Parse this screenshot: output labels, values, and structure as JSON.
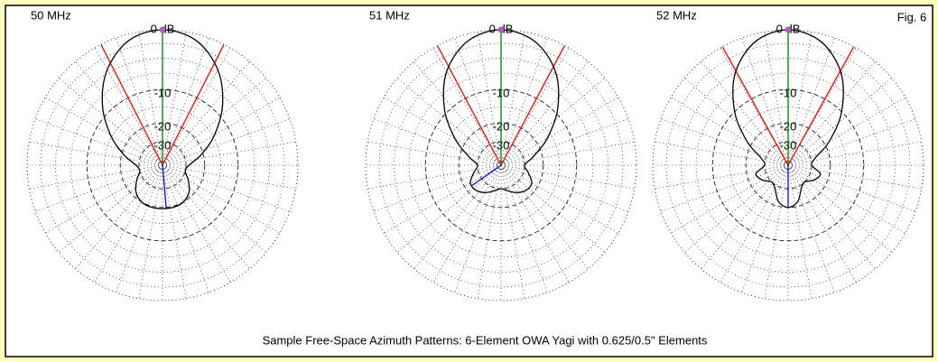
{
  "caption": "Sample Free-Space Azimuth Patterns: 6-Element OWA Yagi with 0.625/0.5\" Elements",
  "figure_label": "Fig. 6",
  "chart_data": [
    {
      "type": "polar",
      "title": "50 MHz",
      "theta": [
        0,
        15,
        30,
        45,
        60,
        75,
        90,
        105,
        120,
        135,
        150,
        165,
        180,
        195,
        210,
        225,
        240,
        255,
        270,
        285,
        300,
        315,
        330,
        345
      ],
      "series": [
        {
          "color": "#000000",
          "values": [
            0,
            -0.8,
            -3.5,
            -8,
            -14,
            -21,
            -28,
            -30,
            -26,
            -22,
            -20,
            -19.5,
            -19.5,
            -19.5,
            -20,
            -22,
            -26,
            -30,
            -28,
            -21,
            -14,
            -8,
            -3.5,
            -0.8
          ]
        }
      ],
      "rlim": [
        -40,
        0
      ],
      "rticks": [
        {
          "value": 0,
          "label": "0 dB"
        },
        -10,
        -20,
        -30
      ],
      "beamwidth_angles": [
        -27,
        27
      ],
      "beamwidth_color": "#ff0000",
      "forward_angle": 0,
      "forward_color": "#008000",
      "back_angle": 175,
      "back_color": "#0000ff"
    },
    {
      "type": "polar",
      "title": "51 MHz",
      "theta": [
        0,
        15,
        30,
        45,
        60,
        75,
        90,
        105,
        120,
        135,
        150,
        165,
        180,
        195,
        210,
        225,
        240,
        255,
        270,
        285,
        300,
        315,
        330,
        345
      ],
      "series": [
        {
          "color": "#000000",
          "values": [
            0,
            -0.9,
            -3.8,
            -9,
            -16,
            -24,
            -30,
            -27,
            -23,
            -23,
            -25,
            -28,
            -30,
            -28,
            -25,
            -23,
            -23,
            -27,
            -30,
            -24,
            -16,
            -9,
            -3.8,
            -0.9
          ]
        }
      ],
      "rlim": [
        -40,
        0
      ],
      "rticks": [
        {
          "value": 0,
          "label": "0 dB"
        },
        -10,
        -20,
        -30
      ],
      "beamwidth_angles": [
        -28,
        28
      ],
      "beamwidth_color": "#ff0000",
      "forward_angle": 0,
      "forward_color": "#008000",
      "back_angle": 235,
      "back_color": "#0000ff"
    },
    {
      "type": "polar",
      "title": "52 MHz",
      "theta": [
        0,
        15,
        30,
        45,
        60,
        75,
        90,
        105,
        120,
        135,
        150,
        165,
        180,
        195,
        210,
        225,
        240,
        255,
        270,
        285,
        300,
        315,
        330,
        345
      ],
      "series": [
        {
          "color": "#000000",
          "values": [
            0,
            -1,
            -4.2,
            -10,
            -18,
            -27,
            -30,
            -24,
            -26,
            -30,
            -28,
            -22,
            -20,
            -22,
            -28,
            -30,
            -26,
            -24,
            -30,
            -27,
            -18,
            -10,
            -4.2,
            -1
          ]
        }
      ],
      "rlim": [
        -40,
        0
      ],
      "rticks": [
        {
          "value": 0,
          "label": "0 dB"
        },
        -10,
        -20,
        -30
      ],
      "beamwidth_angles": [
        -29,
        29
      ],
      "beamwidth_color": "#ff0000",
      "forward_angle": 0,
      "forward_color": "#008000",
      "back_angle": 180,
      "back_color": "#0000ff"
    }
  ]
}
